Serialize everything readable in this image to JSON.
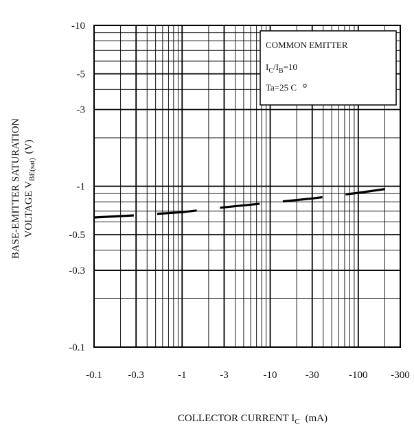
{
  "chart_data": {
    "type": "line",
    "x_scale": "log",
    "y_scale": "log",
    "grid": true,
    "xlim": [
      0.1,
      300
    ],
    "ylim": [
      0.1,
      10
    ],
    "xticks": [
      0.1,
      0.3,
      1,
      3,
      10,
      30,
      100,
      300
    ],
    "xtick_labels": [
      "-0.1",
      "-0.3",
      "-1",
      "-3",
      "-10",
      "-30",
      "-100",
      "-300"
    ],
    "yticks": [
      0.1,
      0.3,
      0.5,
      1,
      3,
      5,
      10
    ],
    "ytick_labels": [
      "-0.1",
      "-0.3",
      "-0.5",
      "-1",
      "-3",
      "-5",
      "-10"
    ],
    "xlabel": {
      "main": "COLLECTOR CURRENT I",
      "sub": "C",
      "unit": "(mA)"
    },
    "ylabel": {
      "line1": "BASE-EMITTER SATURATION",
      "line2_main": "VOLTAGE V",
      "line2_sub": "BE(sat)",
      "unit": "(V)"
    },
    "annotation": {
      "line1": "COMMON EMITTER",
      "line2_a": "I",
      "line2_a_sub": "C",
      "line2_b": "/I",
      "line2_b_sub": "B",
      "line2_c": "=10",
      "line3": "Ta=25  C"
    },
    "series": [
      {
        "x": [
          0.1,
          0.3,
          1,
          3,
          10,
          30,
          100,
          200
        ],
        "y": [
          0.64,
          0.66,
          0.69,
          0.74,
          0.79,
          0.84,
          0.91,
          0.96
        ]
      }
    ]
  }
}
